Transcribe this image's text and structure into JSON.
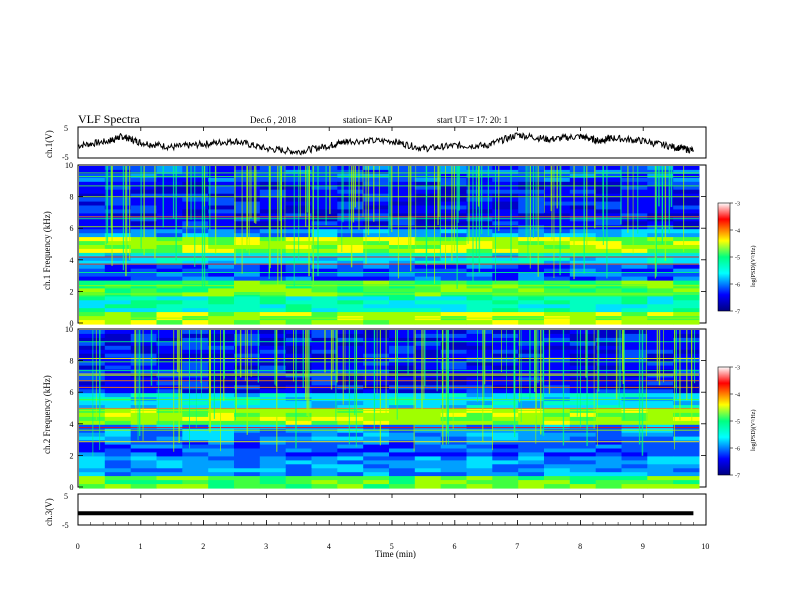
{
  "header": {
    "title": "VLF Spectra",
    "date": "Dec.6 , 2018",
    "station": "station= KAP",
    "start": "start UT = 17: 20: 1"
  },
  "panels": {
    "ch1_wave_label": "ch.1(V)",
    "ch1_spec_label": "ch.1 Frequency (kHz)",
    "ch2_spec_label": "ch.2 Frequency (kHz)",
    "ch3_wave_label": "ch.3(V)",
    "colorbar_label": "log(PSD)(V²/Hz)"
  },
  "colors": {
    "low": "#00007f",
    "mid": "#00ff80",
    "high": "#ff0000"
  },
  "chart_data": [
    {
      "type": "line",
      "name": "ch1-waveform",
      "ylabel": "ch.1(V)",
      "ylim": [
        -5,
        5
      ],
      "yticks": [
        "5",
        "-5"
      ],
      "xlim": [
        0,
        10
      ],
      "x": [
        0,
        0.5,
        0.7,
        1.0,
        1.5,
        2.0,
        2.5,
        3.0,
        3.5,
        4.0,
        4.3,
        5.0,
        5.5,
        6.0,
        6.5,
        7.0,
        7.5,
        8.0,
        8.3,
        8.5,
        9.0,
        9.5,
        9.8
      ],
      "y": [
        -1.0,
        0.5,
        2.0,
        0.0,
        -1.5,
        -0.5,
        0.5,
        -2.0,
        -3.0,
        -1.0,
        0.5,
        0.5,
        -2.0,
        -1.0,
        -1.0,
        2.5,
        1.0,
        2.0,
        0.5,
        1.5,
        0.5,
        -1.5,
        -2.5
      ]
    },
    {
      "type": "heatmap",
      "name": "ch1-spectrogram",
      "ylabel": "ch.1 Frequency (kHz)",
      "ylim": [
        0,
        10
      ],
      "yticks": [
        "0",
        "2",
        "4",
        "6",
        "8",
        "10"
      ],
      "xlim": [
        0,
        10
      ],
      "colorbar": {
        "label": "log(PSD)(V²/Hz)",
        "range": [
          -7,
          -3
        ],
        "ticks": [
          "-3",
          "-4",
          "-5",
          "-6",
          "-7"
        ]
      }
    },
    {
      "type": "heatmap",
      "name": "ch2-spectrogram",
      "ylabel": "ch.2 Frequency (kHz)",
      "ylim": [
        0,
        10
      ],
      "yticks": [
        "0",
        "2",
        "4",
        "6",
        "8",
        "10"
      ],
      "xlim": [
        0,
        10
      ],
      "colorbar": {
        "label": "log(PSD)(V²/Hz)",
        "range": [
          -7,
          -3
        ],
        "ticks": [
          "-3",
          "-4",
          "-5",
          "-6",
          "-7"
        ]
      }
    },
    {
      "type": "line",
      "name": "ch3-waveform",
      "ylabel": "ch.3(V)",
      "ylim": [
        -5,
        5
      ],
      "yticks": [
        "5",
        "-5"
      ],
      "xlim": [
        0,
        10
      ],
      "xlabel": "Time (min)",
      "xticks": [
        "0",
        "1",
        "2",
        "3",
        "4",
        "5",
        "6",
        "7",
        "8",
        "9",
        "10"
      ],
      "x": [
        0,
        9.8
      ],
      "y": [
        -1.2,
        -1.2
      ]
    }
  ]
}
